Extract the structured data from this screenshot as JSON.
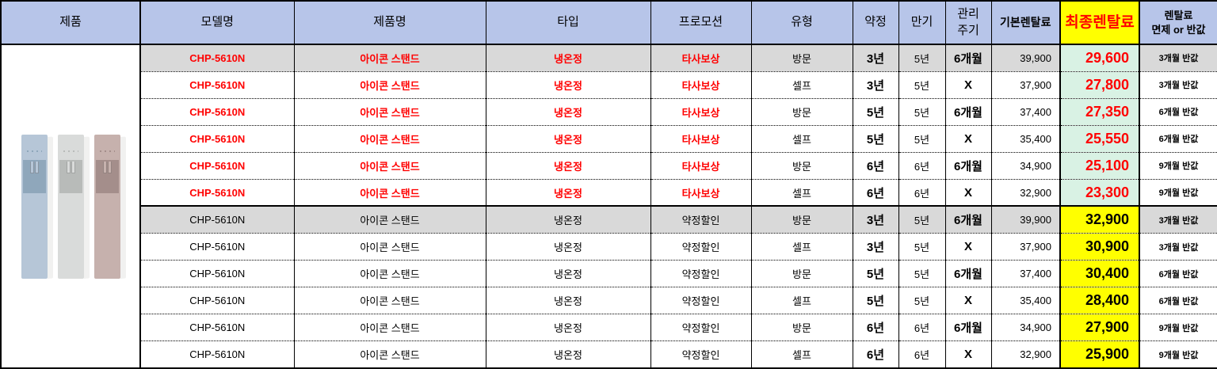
{
  "colors": {
    "header_bg": "#B7C5E9",
    "final_header_bg": "#FFFF00",
    "accent_red": "#FF0000",
    "shaded_row_bg": "#D9D9D9",
    "final_group_a_bg": "#D9F2E4",
    "final_group_b_bg": "#FFFF00"
  },
  "table": {
    "header": {
      "product": "제품",
      "model": "모델명",
      "name": "제품명",
      "type": "타입",
      "promo": "프로모션",
      "channel": "유형",
      "contract": "약정",
      "expiry": "만기",
      "care": "관리\n주기",
      "base": "기본렌탈료",
      "final": "최종렌탈료",
      "benefit": "렌탈료\n면제 or 반값"
    },
    "cell_keys": [
      "model",
      "name",
      "type",
      "promo",
      "channel",
      "contract",
      "expiry",
      "care",
      "base",
      "final",
      "benefit"
    ],
    "rows": [
      {
        "group": "A",
        "shaded": true,
        "model": "CHP-5610N",
        "name": "아이콘 스탠드",
        "type": "냉온정",
        "promo": "타사보상",
        "channel": "방문",
        "contract": "3년",
        "expiry": "5년",
        "care": "6개월",
        "base": "39,900",
        "final": "29,600",
        "benefit": "3개월 반값"
      },
      {
        "group": "A",
        "shaded": false,
        "model": "CHP-5610N",
        "name": "아이콘 스탠드",
        "type": "냉온정",
        "promo": "타사보상",
        "channel": "셀프",
        "contract": "3년",
        "expiry": "5년",
        "care": "X",
        "base": "37,900",
        "final": "27,800",
        "benefit": "3개월 반값"
      },
      {
        "group": "A",
        "shaded": false,
        "model": "CHP-5610N",
        "name": "아이콘 스탠드",
        "type": "냉온정",
        "promo": "타사보상",
        "channel": "방문",
        "contract": "5년",
        "expiry": "5년",
        "care": "6개월",
        "base": "37,400",
        "final": "27,350",
        "benefit": "6개월 반값"
      },
      {
        "group": "A",
        "shaded": false,
        "model": "CHP-5610N",
        "name": "아이콘 스탠드",
        "type": "냉온정",
        "promo": "타사보상",
        "channel": "셀프",
        "contract": "5년",
        "expiry": "5년",
        "care": "X",
        "base": "35,400",
        "final": "25,550",
        "benefit": "6개월 반값"
      },
      {
        "group": "A",
        "shaded": false,
        "model": "CHP-5610N",
        "name": "아이콘 스탠드",
        "type": "냉온정",
        "promo": "타사보상",
        "channel": "방문",
        "contract": "6년",
        "expiry": "6년",
        "care": "6개월",
        "base": "34,900",
        "final": "25,100",
        "benefit": "9개월 반값"
      },
      {
        "group": "A",
        "shaded": false,
        "model": "CHP-5610N",
        "name": "아이콘 스탠드",
        "type": "냉온정",
        "promo": "타사보상",
        "channel": "셀프",
        "contract": "6년",
        "expiry": "6년",
        "care": "X",
        "base": "32,900",
        "final": "23,300",
        "benefit": "9개월 반값"
      },
      {
        "group": "B",
        "shaded": true,
        "model": "CHP-5610N",
        "name": "아이콘 스탠드",
        "type": "냉온정",
        "promo": "약정할인",
        "channel": "방문",
        "contract": "3년",
        "expiry": "5년",
        "care": "6개월",
        "base": "39,900",
        "final": "32,900",
        "benefit": "3개월 반값"
      },
      {
        "group": "B",
        "shaded": false,
        "model": "CHP-5610N",
        "name": "아이콘 스탠드",
        "type": "냉온정",
        "promo": "약정할인",
        "channel": "셀프",
        "contract": "3년",
        "expiry": "5년",
        "care": "X",
        "base": "37,900",
        "final": "30,900",
        "benefit": "3개월 반값"
      },
      {
        "group": "B",
        "shaded": false,
        "model": "CHP-5610N",
        "name": "아이콘 스탠드",
        "type": "냉온정",
        "promo": "약정할인",
        "channel": "방문",
        "contract": "5년",
        "expiry": "5년",
        "care": "6개월",
        "base": "37,400",
        "final": "30,400",
        "benefit": "6개월 반값"
      },
      {
        "group": "B",
        "shaded": false,
        "model": "CHP-5610N",
        "name": "아이콘 스탠드",
        "type": "냉온정",
        "promo": "약정할인",
        "channel": "셀프",
        "contract": "5년",
        "expiry": "5년",
        "care": "X",
        "base": "35,400",
        "final": "28,400",
        "benefit": "6개월 반값"
      },
      {
        "group": "B",
        "shaded": false,
        "model": "CHP-5610N",
        "name": "아이콘 스탠드",
        "type": "냉온정",
        "promo": "약정할인",
        "channel": "방문",
        "contract": "6년",
        "expiry": "6년",
        "care": "6개월",
        "base": "34,900",
        "final": "27,900",
        "benefit": "9개월 반값"
      },
      {
        "group": "B",
        "shaded": false,
        "model": "CHP-5610N",
        "name": "아이콘 스탠드",
        "type": "냉온정",
        "promo": "약정할인",
        "channel": "셀프",
        "contract": "6년",
        "expiry": "6년",
        "care": "X",
        "base": "32,900",
        "final": "25,900",
        "benefit": "9개월 반값"
      }
    ]
  },
  "product_image": {
    "units": [
      {
        "body": "#b6c6d7",
        "panel": "#8fa7bb"
      },
      {
        "body": "#d9dbda",
        "panel": "#b8bbb9"
      },
      {
        "body": "#c6b1ad",
        "panel": "#a48e8b"
      }
    ]
  }
}
